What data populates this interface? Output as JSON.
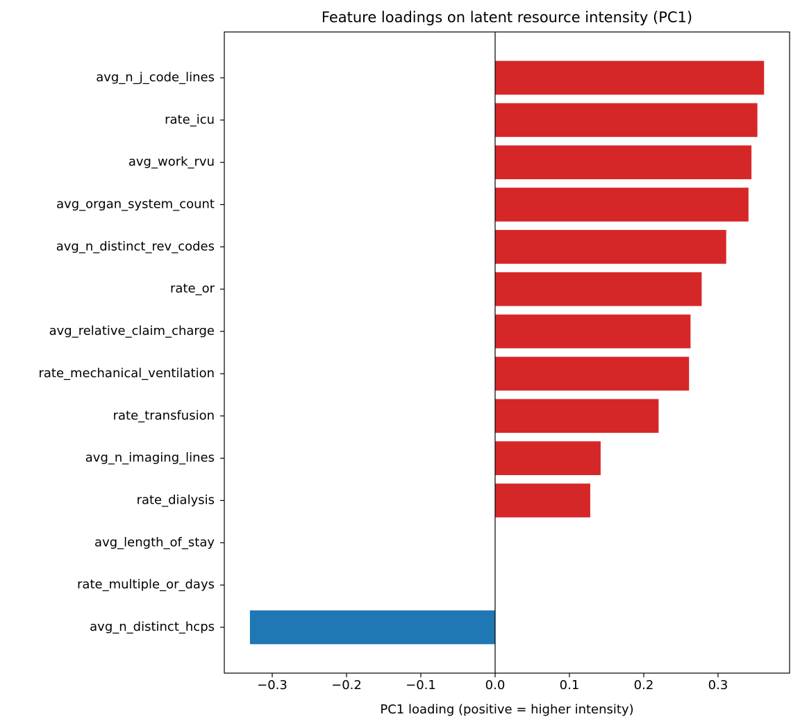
{
  "chart_data": {
    "type": "barh",
    "title": "Feature loadings on latent resource intensity (PC1)",
    "xlabel": "PC1 loading (positive = higher intensity)",
    "categories": [
      "avg_n_j_code_lines",
      "rate_icu",
      "avg_work_rvu",
      "avg_organ_system_count",
      "avg_n_distinct_rev_codes",
      "rate_or",
      "avg_relative_claim_charge",
      "rate_mechanical_ventilation",
      "rate_transfusion",
      "avg_n_imaging_lines",
      "rate_dialysis",
      "avg_length_of_stay",
      "rate_multiple_or_days",
      "avg_n_distinct_hcps"
    ],
    "values": [
      0.362,
      0.353,
      0.345,
      0.341,
      0.311,
      0.278,
      0.263,
      0.261,
      0.22,
      0.142,
      0.128,
      0.0,
      0.0,
      -0.33
    ],
    "positive_color": "#d62728",
    "negative_color": "#1f77b4",
    "xlim": [
      -0.3645,
      0.3963
    ],
    "xticks": [
      {
        "value": -0.3,
        "label": "−0.3"
      },
      {
        "value": -0.2,
        "label": "−0.2"
      },
      {
        "value": -0.1,
        "label": "−0.1"
      },
      {
        "value": 0.0,
        "label": "0.0"
      },
      0.1,
      0.2,
      0.3
    ],
    "grid": false
  }
}
